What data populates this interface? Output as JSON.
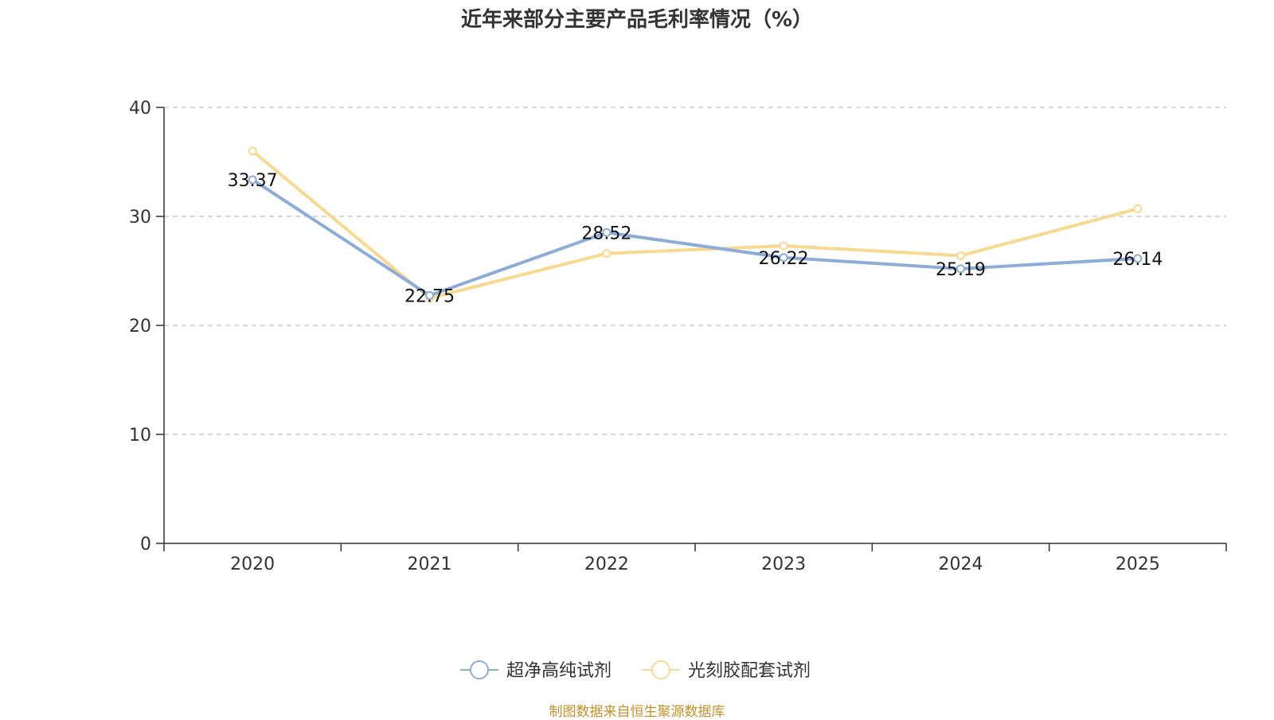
{
  "chart_data": {
    "type": "line",
    "title": "近年来部分主要产品毛利率情况（%）",
    "categories": [
      "2020",
      "2021",
      "2022",
      "2023",
      "2024",
      "2025"
    ],
    "ylim": [
      0,
      40
    ],
    "yticks": [
      0,
      10,
      20,
      30,
      40
    ],
    "grid": true,
    "legend_position": "bottom",
    "series": [
      {
        "name": "超净高纯试剂",
        "color": "#8eacd8",
        "values": [
          33.37,
          22.75,
          28.52,
          26.22,
          25.19,
          26.14
        ],
        "labels": [
          "33.37",
          "22.75",
          "28.52",
          "26.22",
          "25.19",
          "26.14"
        ]
      },
      {
        "name": "光刻胶配套试剂",
        "color": "#f9d98f",
        "values": [
          36.0,
          22.5,
          26.6,
          27.3,
          26.4,
          30.7
        ]
      }
    ]
  },
  "source_note": "制图数据来自恒生聚源数据库"
}
